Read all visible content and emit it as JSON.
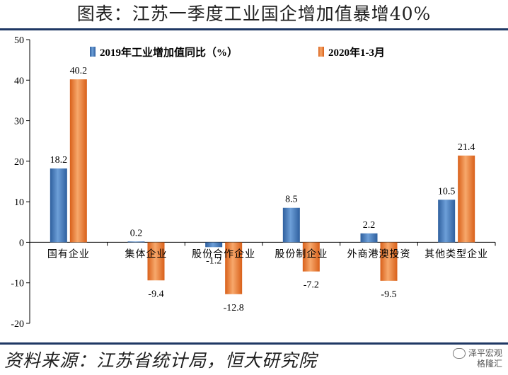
{
  "header": {
    "title": "图表：江苏一季度工业国企增加值暴增40%"
  },
  "footer": {
    "source": "资料来源：江苏省统计局，恒大研究院",
    "watermark_line1": "泽平宏观",
    "watermark_line2": "格隆汇"
  },
  "chart_data": {
    "type": "bar",
    "categories": [
      "国有企业",
      "集体企业",
      "股份合作企业",
      "股份制企业",
      "外商港澳投资",
      "其他类型企业"
    ],
    "series": [
      {
        "name": "2019年工业增加值同比（%）",
        "values": [
          18.2,
          0.2,
          -1.2,
          8.5,
          2.2,
          10.5
        ],
        "color": "#4a7ebf"
      },
      {
        "name": "2020年1-3月",
        "values": [
          40.2,
          -9.4,
          -12.8,
          -7.2,
          -9.5,
          21.4
        ],
        "color": "#ed7d31"
      }
    ],
    "data_labels": [
      [
        "18.2",
        "0.2",
        "-1.2",
        "8.5",
        "2.2",
        "10.5"
      ],
      [
        "40.2",
        "-9.4",
        "-12.8",
        "-7.2",
        "-9.5",
        "21.4"
      ]
    ],
    "ylim": [
      -20,
      50
    ],
    "yticks": [
      "-20",
      "-10",
      "0",
      "10",
      "20",
      "30",
      "40",
      "50"
    ],
    "legend_position": "top",
    "grid": false
  }
}
